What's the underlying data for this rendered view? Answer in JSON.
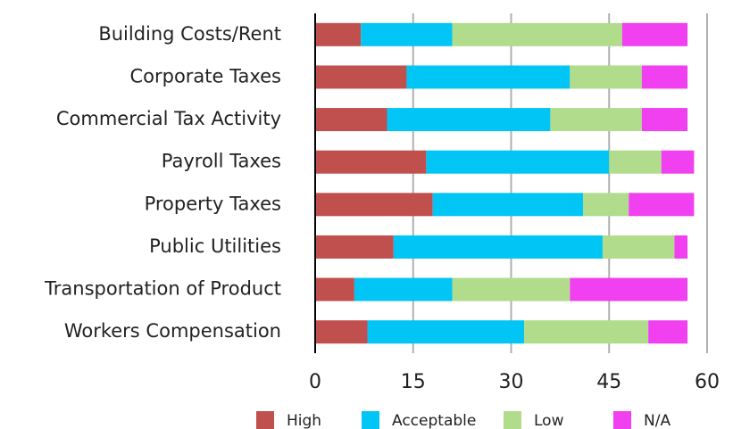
{
  "chart_data": {
    "type": "stacked_barh",
    "categories": [
      "Building Costs/Rent",
      "Corporate Taxes",
      "Commercial Tax Activity",
      "Payroll Taxes",
      "Property Taxes",
      "Public Utilities",
      "Transportation of Product",
      "Workers Compensation"
    ],
    "series": [
      {
        "name": "High",
        "color": "#c0504d",
        "values": [
          7,
          14,
          11,
          17,
          18,
          12,
          6,
          8
        ]
      },
      {
        "name": "Acceptable",
        "color": "#00c5f5",
        "values": [
          14,
          25,
          25,
          28,
          23,
          32,
          15,
          24
        ]
      },
      {
        "name": "Low",
        "color": "#b0dc8c",
        "values": [
          26,
          11,
          14,
          8,
          7,
          11,
          18,
          19
        ]
      },
      {
        "name": "N/A",
        "color": "#f040f0",
        "values": [
          10,
          7,
          7,
          5,
          10,
          2,
          18,
          6
        ]
      }
    ],
    "xlim": [
      0,
      60
    ],
    "xticks": [
      0,
      15,
      30,
      45,
      60
    ],
    "grid": true,
    "legend": "bottom"
  }
}
